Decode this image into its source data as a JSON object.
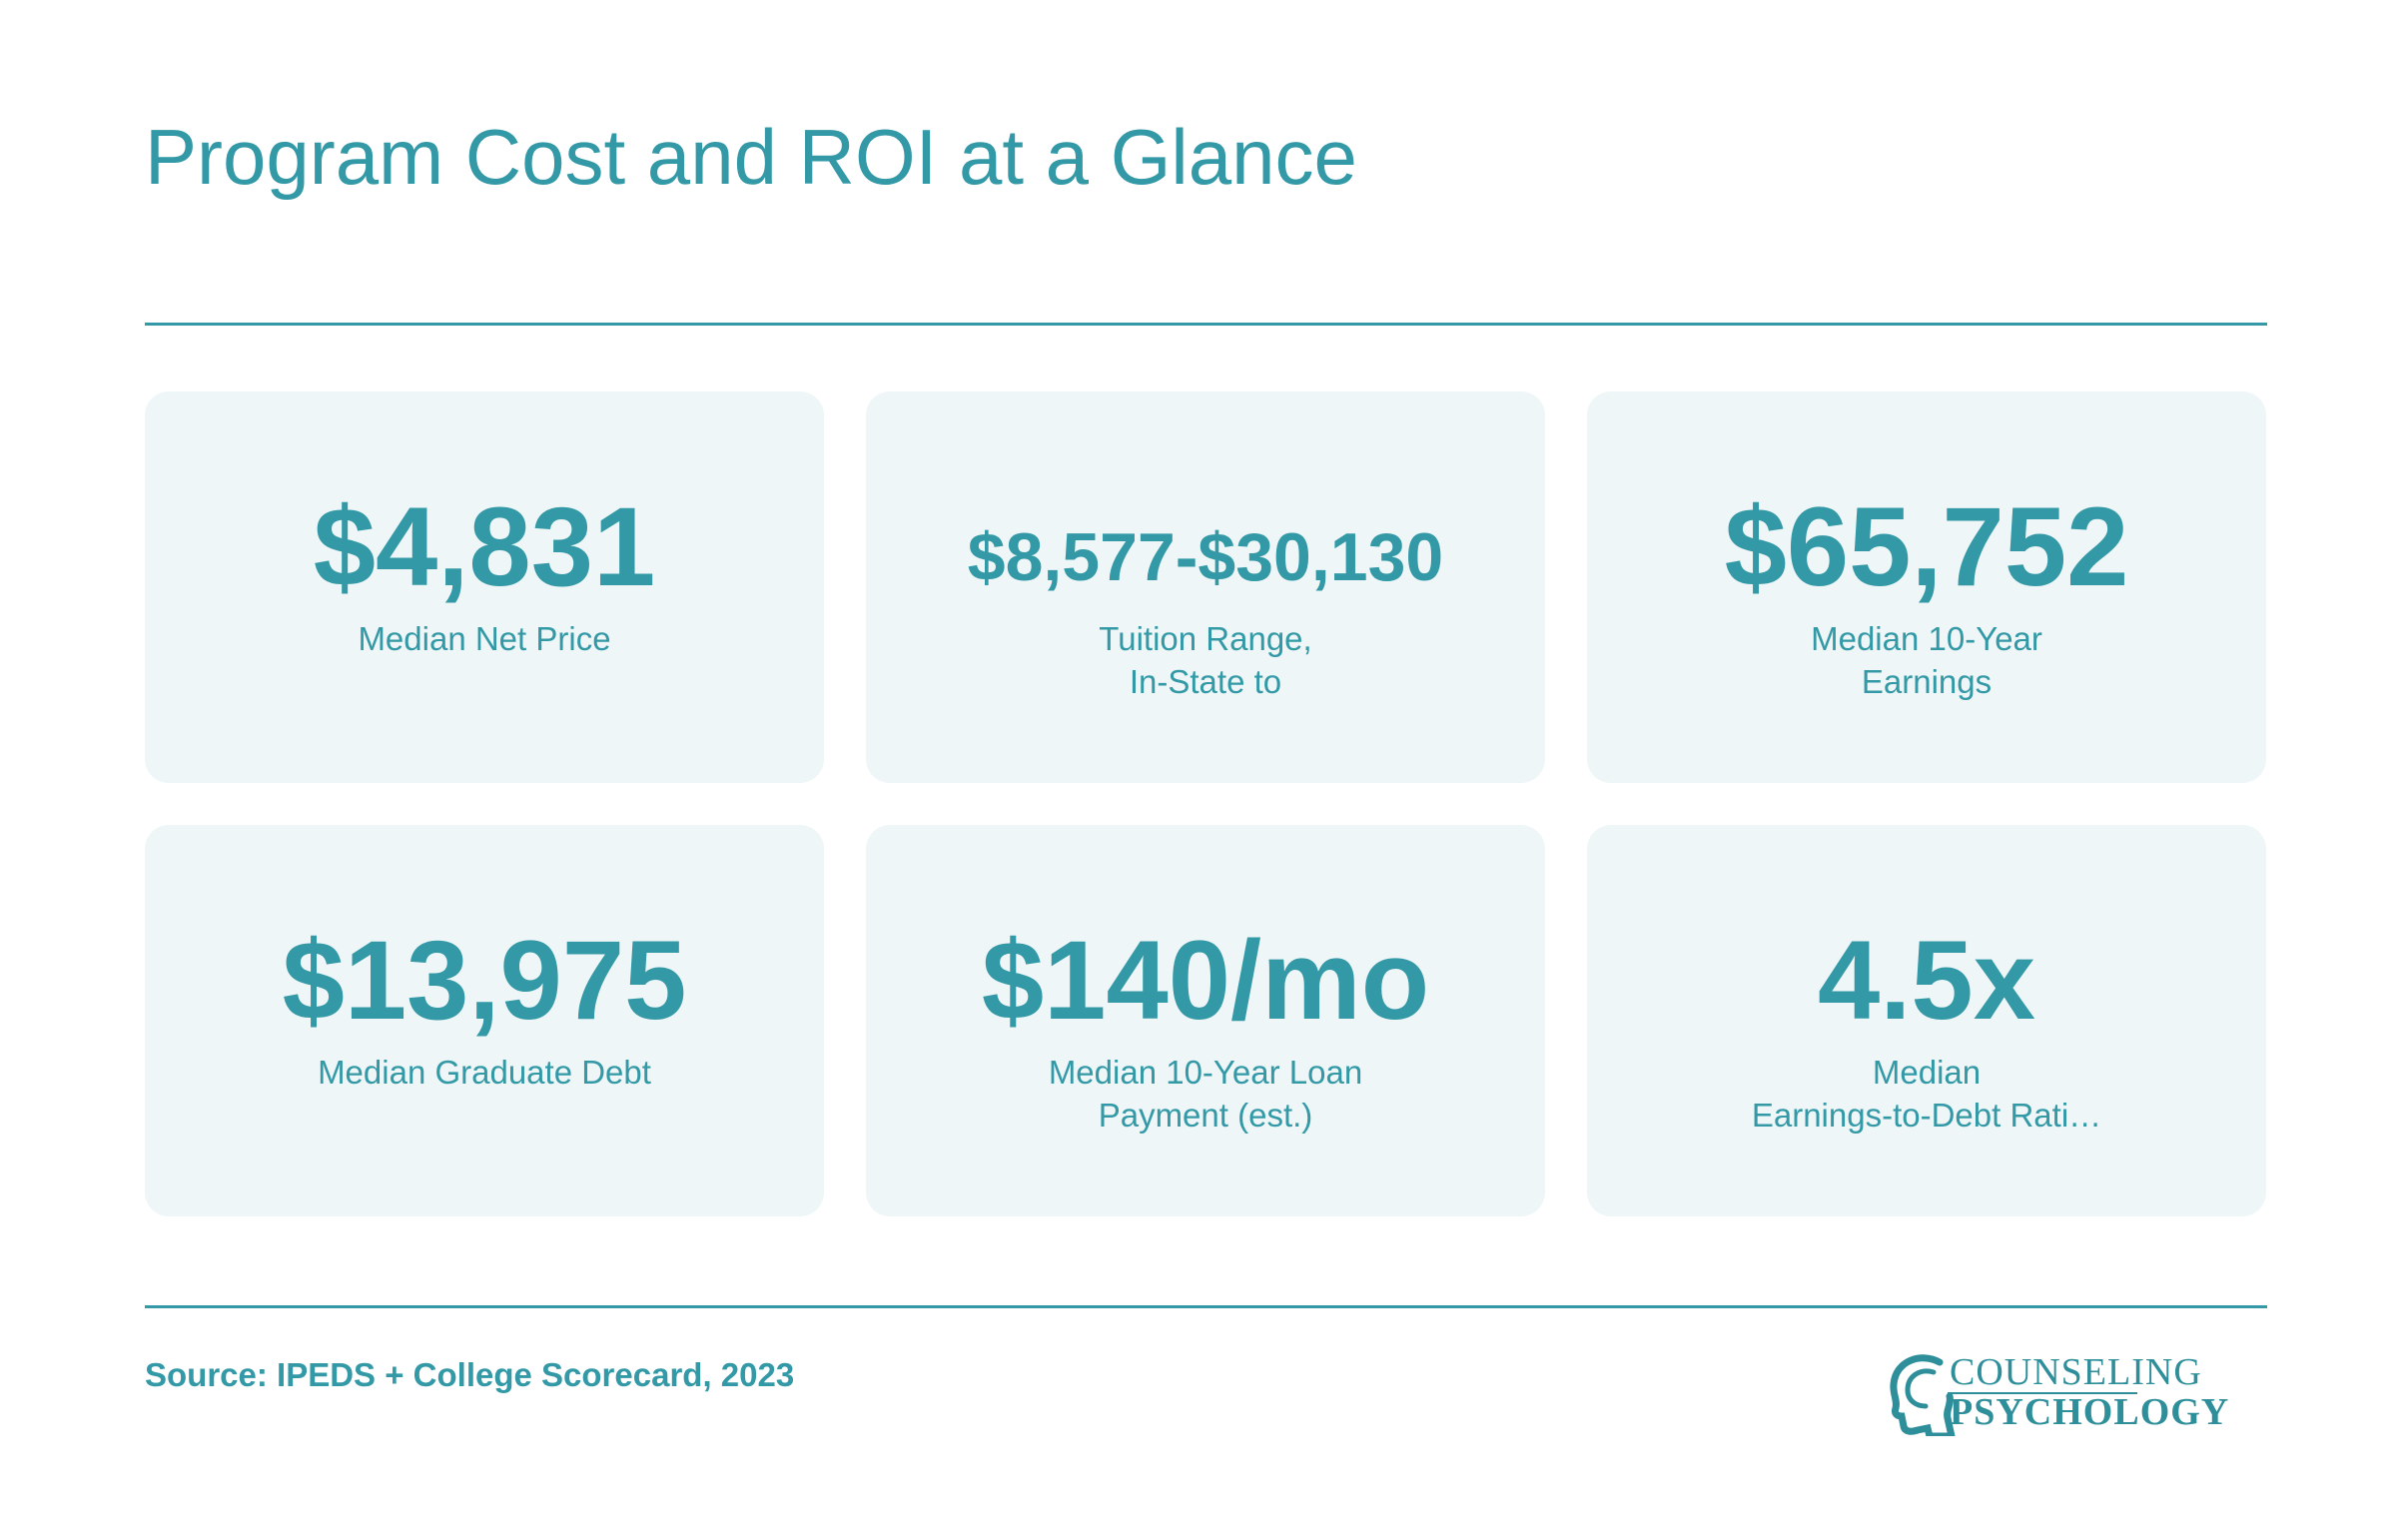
{
  "header": {
    "title": "Program Cost and ROI at a Glance"
  },
  "stats": [
    {
      "value": "$4,831",
      "label_lines": [
        "Median Net Price"
      ]
    },
    {
      "value": "$8,577-$30,130",
      "label_lines": [
        "Tuition Range,",
        "In-State to"
      ]
    },
    {
      "value": "$65,752",
      "label_lines": [
        "Median 10-Year",
        "Earnings"
      ]
    },
    {
      "value": "$13,975",
      "label_lines": [
        "Median Graduate Debt"
      ]
    },
    {
      "value": "$140/mo",
      "label_lines": [
        "Median 10-Year Loan",
        "Payment (est.)"
      ]
    },
    {
      "value": "4.5x",
      "label_lines": [
        "Median",
        "Earnings-to-Debt Rati…"
      ]
    }
  ],
  "footer": {
    "source": "Source: IPEDS + College Scorecard, 2023",
    "logo": {
      "line1": "COUNSELING",
      "line2": "PSYCHOLOGY",
      "icon": "head-profile-icon"
    }
  },
  "colors": {
    "accent": "#3399a6",
    "card_bg": "#eef6f7",
    "background": "#ffffff"
  }
}
